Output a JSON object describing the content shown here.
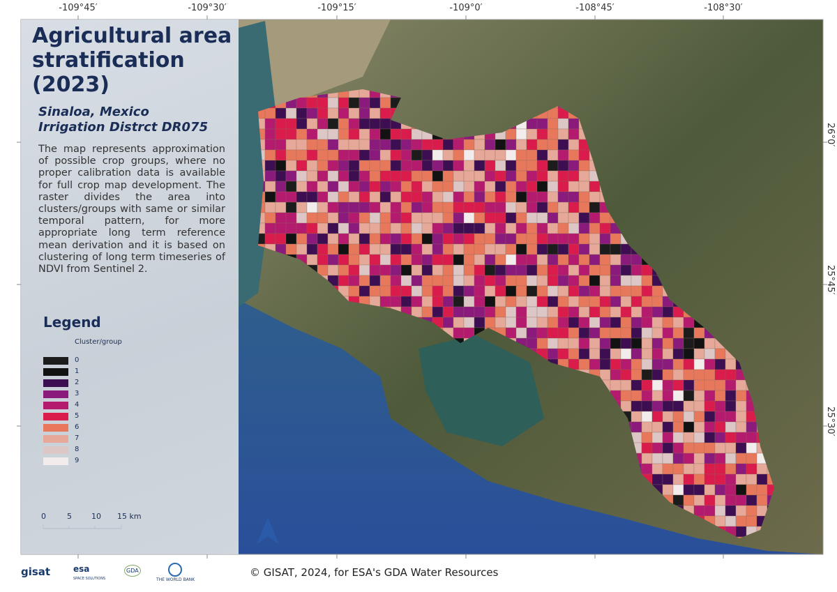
{
  "header": {
    "title": "Agricultural area stratification (2023)",
    "subtitle": [
      "Sinaloa, Mexico",
      "Irrigation Distrct DR075"
    ],
    "description": "The map represents approximation of possible crop groups, where no proper calibration data is available for full crop map development. The raster divides the area into clusters/groups with same or similar temporal pattern, for more appropriate long term reference mean derivation and it is based on clustering of long term timeseries of NDVI from Sentinel 2."
  },
  "legend": {
    "title": "Legend",
    "subtitle": "Cluster/group",
    "items": [
      {
        "label": "0",
        "color": "#1c1c1c"
      },
      {
        "label": "1",
        "color": "#121212"
      },
      {
        "label": "2",
        "color": "#3d0f52"
      },
      {
        "label": "3",
        "color": "#8a1a7c"
      },
      {
        "label": "4",
        "color": "#b41a6e"
      },
      {
        "label": "5",
        "color": "#d91c4b"
      },
      {
        "label": "6",
        "color": "#e8785c"
      },
      {
        "label": "7",
        "color": "#e6a898"
      },
      {
        "label": "8",
        "color": "#dcc6c6"
      },
      {
        "label": "9",
        "color": "#f3ecec"
      }
    ]
  },
  "scale_bar": {
    "labels": [
      "0",
      "5",
      "10",
      "15 km"
    ]
  },
  "graticule": {
    "top": [
      "-109°45′",
      "-109°30′",
      "-109°15′",
      "-109°0′",
      "-108°45′",
      "-108°30′"
    ],
    "right": [
      "26°0′",
      "25°45′",
      "25°30′"
    ]
  },
  "footer": {
    "logos": [
      "gisat",
      "esa",
      "SPACE SOLUTIONS",
      "GDA",
      "THE WORLD BANK"
    ],
    "credit": "© GISAT, 2024, for ESA's GDA Water Resources"
  }
}
